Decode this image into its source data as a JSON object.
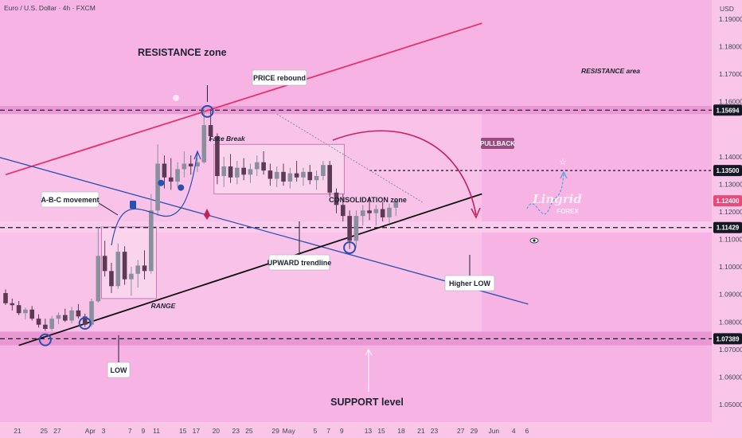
{
  "header": {
    "symbol": "Euro / U.S. Dollar · 4h · FXCM"
  },
  "colors": {
    "background": "#f7b3e3",
    "zone_light": "#fbcdee",
    "zone_dark": "#e58fcd",
    "up_candle": "#8a8f9e",
    "down_candle": "#5c3a55",
    "channel_top": "#e8316b",
    "trendline_blue": "#2b4fb0",
    "trendline_black": "#101010",
    "price_tag": "#e84a7a",
    "dark_tag": "#141823"
  },
  "chart_data": {
    "type": "candlestick",
    "currency": "USD",
    "timeframe": "4h",
    "ylim": [
      1.045,
      1.196
    ],
    "y_ticks": [
      1.19,
      1.18,
      1.17,
      1.16,
      1.14,
      1.13,
      1.12,
      1.11,
      1.1,
      1.09,
      1.08,
      1.07,
      1.06,
      1.05
    ],
    "x_ticks": [
      {
        "label": "21",
        "x": 0
      },
      {
        "label": "25",
        "x": 4
      },
      {
        "label": "27",
        "x": 6
      },
      {
        "label": "Apr",
        "x": 11
      },
      {
        "label": "3",
        "x": 13
      },
      {
        "label": "7",
        "x": 17
      },
      {
        "label": "9",
        "x": 19
      },
      {
        "label": "11",
        "x": 21
      },
      {
        "label": "15",
        "x": 25
      },
      {
        "label": "17",
        "x": 27
      },
      {
        "label": "20",
        "x": 30
      },
      {
        "label": "23",
        "x": 33
      },
      {
        "label": "25",
        "x": 35
      },
      {
        "label": "29",
        "x": 39
      },
      {
        "label": "May",
        "x": 41
      },
      {
        "label": "5",
        "x": 45
      },
      {
        "label": "7",
        "x": 47
      },
      {
        "label": "9",
        "x": 49
      },
      {
        "label": "13",
        "x": 53
      },
      {
        "label": "15",
        "x": 55
      },
      {
        "label": "18",
        "x": 58
      },
      {
        "label": "21",
        "x": 61
      },
      {
        "label": "23",
        "x": 63
      },
      {
        "label": "27",
        "x": 67
      },
      {
        "label": "29",
        "x": 69
      },
      {
        "label": "Jun",
        "x": 72
      },
      {
        "label": "4",
        "x": 75
      },
      {
        "label": "6",
        "x": 77
      }
    ],
    "price_tags": [
      {
        "value": 1.15694,
        "label": "1.15694",
        "style": "dark"
      },
      {
        "value": 1.135,
        "label": "1.13500",
        "style": "dark"
      },
      {
        "value": 1.124,
        "label": "1.12400",
        "style": "pink"
      },
      {
        "value": 1.11429,
        "label": "1.11429",
        "style": "dark"
      },
      {
        "value": 1.07389,
        "label": "1.07389",
        "style": "dark"
      }
    ],
    "zones": [
      {
        "name": "resistance-band",
        "y0": 1.1555,
        "y1": 1.1585,
        "style": "dark"
      },
      {
        "name": "support-band",
        "y0": 1.0715,
        "y1": 1.0765,
        "style": "dark"
      },
      {
        "name": "mid-band",
        "y0": 1.1125,
        "y1": 1.1165,
        "style": "light"
      },
      {
        "name": "consolidation-box",
        "x0": 31.5,
        "x1": 51.2,
        "y0": 1.1265,
        "y1": 1.1445
      },
      {
        "name": "range-box",
        "x0": 14.5,
        "x1": 22.8,
        "y0": 1.0885,
        "y1": 1.1145
      }
    ],
    "trendlines": [
      {
        "name": "channel-top",
        "x0": 0,
        "y0": 1.1335,
        "x1": 72,
        "y1": 1.1885
      },
      {
        "name": "blue-down",
        "x0": -2,
        "y0": 1.1405,
        "x1": 79,
        "y1": 1.0865
      },
      {
        "name": "support-up",
        "x0": 2,
        "y0": 1.0715,
        "x1": 72,
        "y1": 1.1265
      }
    ],
    "annotations": {
      "resistance_zone": "RESISTANCE zone",
      "resistance_area": "RESISTANCE area",
      "price_rebound": "PRICE rebound",
      "fake_break": "Fake Break",
      "pullback": "PULLBACK",
      "abc_movement": "A-B-C movement",
      "consolidation_zone": "CONSOLIDATION zone",
      "upward_trendline": "UPWARD trendline",
      "range": "RANGE",
      "higher_low": "Higher LOW",
      "low": "LOW",
      "support_level": "SUPPORT level",
      "watermark_brand": "Lingrid",
      "watermark_sub": "FOREX"
    },
    "ohlc": [
      {
        "o": 1.0905,
        "h": 1.0918,
        "l": 1.0862,
        "c": 1.0868
      },
      {
        "o": 1.0868,
        "h": 1.0885,
        "l": 1.0842,
        "c": 1.0861
      },
      {
        "o": 1.0861,
        "h": 1.0876,
        "l": 1.0825,
        "c": 1.0832
      },
      {
        "o": 1.0832,
        "h": 1.0852,
        "l": 1.081,
        "c": 1.0845
      },
      {
        "o": 1.0845,
        "h": 1.0858,
        "l": 1.0805,
        "c": 1.0812
      },
      {
        "o": 1.0812,
        "h": 1.0828,
        "l": 1.078,
        "c": 1.079
      },
      {
        "o": 1.079,
        "h": 1.0812,
        "l": 1.0768,
        "c": 1.0775
      },
      {
        "o": 1.0775,
        "h": 1.0822,
        "l": 1.0768,
        "c": 1.0812
      },
      {
        "o": 1.0812,
        "h": 1.0835,
        "l": 1.0792,
        "c": 1.0825
      },
      {
        "o": 1.0825,
        "h": 1.0848,
        "l": 1.08,
        "c": 1.0805
      },
      {
        "o": 1.0805,
        "h": 1.0855,
        "l": 1.0795,
        "c": 1.0842
      },
      {
        "o": 1.0842,
        "h": 1.0865,
        "l": 1.0812,
        "c": 1.082
      },
      {
        "o": 1.082,
        "h": 1.083,
        "l": 1.0782,
        "c": 1.079
      },
      {
        "o": 1.079,
        "h": 1.0885,
        "l": 1.0782,
        "c": 1.0875
      },
      {
        "o": 1.0875,
        "h": 1.1145,
        "l": 1.087,
        "c": 1.104
      },
      {
        "o": 1.104,
        "h": 1.1095,
        "l": 1.0965,
        "c": 1.0985
      },
      {
        "o": 1.0985,
        "h": 1.1015,
        "l": 1.0905,
        "c": 1.093
      },
      {
        "o": 1.093,
        "h": 1.1085,
        "l": 1.092,
        "c": 1.1055
      },
      {
        "o": 1.1055,
        "h": 1.1075,
        "l": 1.0935,
        "c": 1.0955
      },
      {
        "o": 1.0955,
        "h": 1.1,
        "l": 1.0895,
        "c": 1.0975
      },
      {
        "o": 1.0975,
        "h": 1.1025,
        "l": 1.0925,
        "c": 1.1005
      },
      {
        "o": 1.1005,
        "h": 1.106,
        "l": 1.0955,
        "c": 1.0985
      },
      {
        "o": 1.0985,
        "h": 1.1265,
        "l": 1.0975,
        "c": 1.1205
      },
      {
        "o": 1.1205,
        "h": 1.1445,
        "l": 1.1185,
        "c": 1.1375
      },
      {
        "o": 1.1375,
        "h": 1.1405,
        "l": 1.1285,
        "c": 1.1325
      },
      {
        "o": 1.1325,
        "h": 1.1395,
        "l": 1.128,
        "c": 1.131
      },
      {
        "o": 1.131,
        "h": 1.138,
        "l": 1.129,
        "c": 1.1355
      },
      {
        "o": 1.1355,
        "h": 1.142,
        "l": 1.1325,
        "c": 1.1375
      },
      {
        "o": 1.1375,
        "h": 1.1405,
        "l": 1.1335,
        "c": 1.1365
      },
      {
        "o": 1.1365,
        "h": 1.1395,
        "l": 1.1345,
        "c": 1.138
      },
      {
        "o": 1.138,
        "h": 1.1575,
        "l": 1.1375,
        "c": 1.1515
      },
      {
        "o": 1.1515,
        "h": 1.1572,
        "l": 1.1455,
        "c": 1.1475
      },
      {
        "o": 1.1475,
        "h": 1.1485,
        "l": 1.13,
        "c": 1.133
      },
      {
        "o": 1.133,
        "h": 1.14,
        "l": 1.129,
        "c": 1.1365
      },
      {
        "o": 1.1365,
        "h": 1.141,
        "l": 1.1305,
        "c": 1.1325
      },
      {
        "o": 1.1325,
        "h": 1.1385,
        "l": 1.13,
        "c": 1.136
      },
      {
        "o": 1.136,
        "h": 1.1395,
        "l": 1.1315,
        "c": 1.1335
      },
      {
        "o": 1.1335,
        "h": 1.1375,
        "l": 1.1305,
        "c": 1.1355
      },
      {
        "o": 1.1355,
        "h": 1.1405,
        "l": 1.133,
        "c": 1.138
      },
      {
        "o": 1.138,
        "h": 1.142,
        "l": 1.1335,
        "c": 1.135
      },
      {
        "o": 1.135,
        "h": 1.1375,
        "l": 1.1295,
        "c": 1.132
      },
      {
        "o": 1.132,
        "h": 1.1365,
        "l": 1.129,
        "c": 1.1345
      },
      {
        "o": 1.1345,
        "h": 1.1375,
        "l": 1.1295,
        "c": 1.131
      },
      {
        "o": 1.131,
        "h": 1.136,
        "l": 1.1285,
        "c": 1.134
      },
      {
        "o": 1.134,
        "h": 1.1385,
        "l": 1.131,
        "c": 1.1325
      },
      {
        "o": 1.1325,
        "h": 1.136,
        "l": 1.1295,
        "c": 1.1345
      },
      {
        "o": 1.1345,
        "h": 1.137,
        "l": 1.13,
        "c": 1.1315
      },
      {
        "o": 1.1315,
        "h": 1.135,
        "l": 1.128,
        "c": 1.133
      },
      {
        "o": 1.133,
        "h": 1.1385,
        "l": 1.1315,
        "c": 1.137
      },
      {
        "o": 1.137,
        "h": 1.1385,
        "l": 1.1255,
        "c": 1.127
      },
      {
        "o": 1.127,
        "h": 1.1285,
        "l": 1.1195,
        "c": 1.1225
      },
      {
        "o": 1.1225,
        "h": 1.1265,
        "l": 1.1165,
        "c": 1.1185
      },
      {
        "o": 1.1185,
        "h": 1.1205,
        "l": 1.1065,
        "c": 1.1095
      },
      {
        "o": 1.1095,
        "h": 1.1205,
        "l": 1.107,
        "c": 1.1185
      },
      {
        "o": 1.1185,
        "h": 1.1225,
        "l": 1.115,
        "c": 1.1205
      },
      {
        "o": 1.1205,
        "h": 1.1255,
        "l": 1.117,
        "c": 1.1195
      },
      {
        "o": 1.1195,
        "h": 1.1225,
        "l": 1.115,
        "c": 1.121
      },
      {
        "o": 1.121,
        "h": 1.1235,
        "l": 1.1165,
        "c": 1.118
      },
      {
        "o": 1.118,
        "h": 1.123,
        "l": 1.116,
        "c": 1.1215
      },
      {
        "o": 1.1215,
        "h": 1.1245,
        "l": 1.1185,
        "c": 1.124
      }
    ]
  }
}
